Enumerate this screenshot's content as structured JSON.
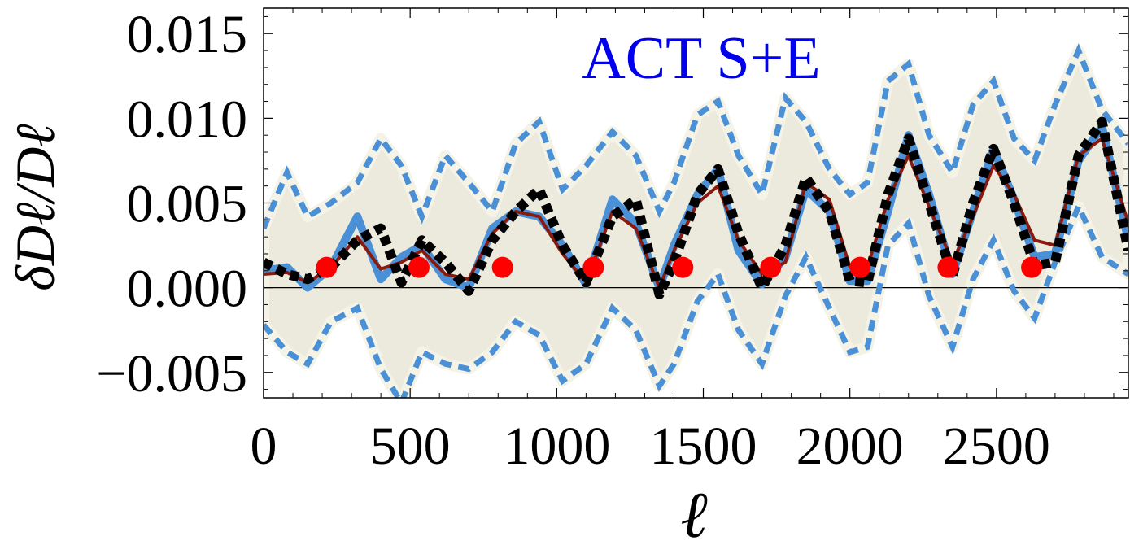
{
  "chart_data": {
    "type": "line",
    "title": "",
    "annotation": "ACT S+E",
    "xlabel": "ℓ",
    "ylabel": "δDℓ/Dℓ",
    "xlim": [
      0,
      2950
    ],
    "ylim": [
      -0.0065,
      0.0165
    ],
    "x_ticks": [
      0,
      500,
      1000,
      1500,
      2000,
      2500
    ],
    "x_tick_labels": [
      "0",
      "500",
      "1000",
      "1500",
      "2000",
      "2500"
    ],
    "y_ticks": [
      0.015,
      0.01,
      0.005,
      0.0,
      -0.005
    ],
    "y_tick_labels": [
      "0.015",
      "0.010",
      "0.005",
      "0.000",
      "−0.005"
    ],
    "colors": {
      "band_fill": "#ece9dd",
      "band_edge": "#f5f2e6",
      "bounds": "#4a90d6",
      "mean_blue": "#4a90d6",
      "mean_red": "#8b1a0e",
      "dashed": "#000000",
      "points": "#ff0000",
      "annotation": "#0000ee"
    },
    "x": [
      0,
      80,
      150,
      230,
      320,
      400,
      470,
      540,
      620,
      700,
      780,
      860,
      940,
      1020,
      1100,
      1190,
      1270,
      1350,
      1400,
      1480,
      1550,
      1620,
      1700,
      1780,
      1850,
      1930,
      2000,
      2060,
      2130,
      2200,
      2270,
      2350,
      2420,
      2490,
      2560,
      2630,
      2700,
      2780,
      2860,
      2950
    ],
    "series": [
      {
        "name": "upper bound",
        "style": "dotted",
        "values": [
          0.0035,
          0.0068,
          0.0042,
          0.005,
          0.0062,
          0.0088,
          0.0072,
          0.0042,
          0.0078,
          0.0062,
          0.0045,
          0.0085,
          0.0098,
          0.0058,
          0.0072,
          0.0092,
          0.0078,
          0.0045,
          0.0062,
          0.0102,
          0.011,
          0.0078,
          0.0055,
          0.0112,
          0.0098,
          0.007,
          0.0055,
          0.0062,
          0.0122,
          0.0132,
          0.009,
          0.0068,
          0.0108,
          0.0122,
          0.0088,
          0.0075,
          0.0108,
          0.014,
          0.0105,
          0.0085
        ]
      },
      {
        "name": "lower bound",
        "style": "dotted",
        "values": [
          -0.0022,
          -0.0038,
          -0.0045,
          -0.002,
          -0.0012,
          -0.0048,
          -0.0068,
          -0.0038,
          -0.0045,
          -0.0048,
          -0.0038,
          -0.002,
          -0.0028,
          -0.0055,
          -0.0045,
          -0.0012,
          -0.0025,
          -0.0058,
          -0.0045,
          -0.0008,
          0.0008,
          -0.0025,
          -0.0045,
          -0.0005,
          0.0018,
          -0.0012,
          -0.0038,
          -0.0035,
          0.0025,
          0.0038,
          -0.0005,
          -0.0035,
          0.0005,
          0.0028,
          -0.0002,
          -0.0018,
          0.0015,
          0.0048,
          0.0018,
          0.0008
        ]
      },
      {
        "name": "mean (blue)",
        "style": "solid",
        "values": [
          0.001,
          0.0012,
          0.0,
          0.0012,
          0.0042,
          0.0005,
          0.0018,
          0.0025,
          0.0005,
          0.0,
          0.0035,
          0.0045,
          0.0042,
          0.0025,
          0.0002,
          0.0052,
          0.0038,
          0.0,
          0.0025,
          0.0055,
          0.007,
          0.0022,
          0.0002,
          0.0018,
          0.0058,
          0.0045,
          0.0004,
          0.0004,
          0.0045,
          0.009,
          0.0055,
          0.0008,
          0.0045,
          0.0082,
          0.0052,
          0.0018,
          0.002,
          0.0075,
          0.0095,
          0.0028
        ]
      },
      {
        "name": "mean (red)",
        "style": "solid",
        "values": [
          0.0008,
          0.0009,
          0.0003,
          0.0012,
          0.003,
          0.0011,
          0.0015,
          0.0022,
          0.0008,
          0.0005,
          0.0032,
          0.0045,
          0.0042,
          0.002,
          0.0003,
          0.0045,
          0.0035,
          0.0,
          0.0022,
          0.005,
          0.006,
          0.0028,
          0.0008,
          0.0015,
          0.0062,
          0.0052,
          0.0012,
          0.0012,
          0.0052,
          0.0078,
          0.0048,
          0.0015,
          0.0042,
          0.0072,
          0.0055,
          0.0028,
          0.0025,
          0.0078,
          0.0088,
          0.0038
        ]
      },
      {
        "name": "dashed model",
        "style": "dashed",
        "values": [
          0.0015,
          0.0008,
          0.0005,
          0.0012,
          0.0028,
          0.0035,
          0.0003,
          0.0028,
          0.0015,
          -0.0002,
          0.0028,
          0.0045,
          0.0058,
          0.0025,
          0.0003,
          0.0042,
          0.0052,
          -0.0004,
          0.0015,
          0.0055,
          0.007,
          0.0032,
          0.0,
          0.0025,
          0.0065,
          0.0045,
          0.0004,
          0.0003,
          0.0055,
          0.0088,
          0.005,
          0.0007,
          0.005,
          0.0082,
          0.005,
          0.0013,
          0.0015,
          0.0078,
          0.0098,
          0.0022
        ]
      }
    ],
    "points": {
      "x": [
        215,
        530,
        815,
        1125,
        1430,
        1730,
        2035,
        2335,
        2620
      ],
      "y": [
        0.0012,
        0.0012,
        0.0012,
        0.0012,
        0.0012,
        0.0012,
        0.0012,
        0.0012,
        0.0012
      ]
    }
  }
}
